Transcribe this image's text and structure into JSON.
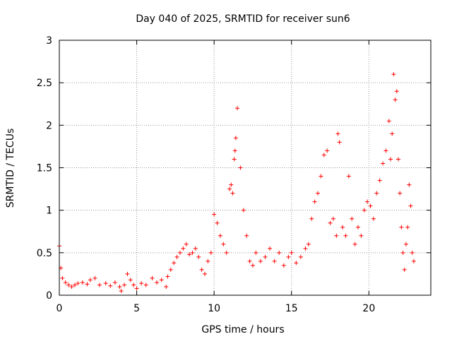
{
  "chart_data": {
    "type": "scatter",
    "title": "Day 040 of 2025, SRMTID for receiver sun6",
    "xlabel": "GPS time / hours",
    "ylabel": "SRMTID / TECUs",
    "xlim": [
      0,
      24
    ],
    "ylim": [
      0,
      3
    ],
    "xticks": [
      0,
      5,
      10,
      15,
      20
    ],
    "xtick_labels": [
      "0",
      "5",
      "10",
      "15",
      "20"
    ],
    "yticks": [
      0,
      0.5,
      1,
      1.5,
      2,
      2.5,
      3
    ],
    "ytick_labels": [
      "0",
      "0.5",
      "1",
      "1.5",
      "2",
      "2.5",
      "3"
    ],
    "grid": true,
    "marker": "plus",
    "marker_color": "#ff0000",
    "series": [
      {
        "name": "SRMTID",
        "x": [
          0.0,
          0.1,
          0.2,
          0.4,
          0.6,
          0.8,
          1.0,
          1.2,
          1.5,
          1.8,
          2.0,
          2.3,
          2.6,
          3.0,
          3.3,
          3.6,
          3.9,
          4.0,
          4.2,
          4.4,
          4.6,
          4.8,
          5.0,
          5.3,
          5.6,
          6.0,
          6.3,
          6.6,
          6.9,
          7.0,
          7.2,
          7.4,
          7.6,
          7.8,
          8.0,
          8.2,
          8.4,
          8.6,
          8.8,
          9.0,
          9.2,
          9.4,
          9.6,
          9.8,
          10.0,
          10.2,
          10.4,
          10.6,
          10.8,
          11.0,
          11.1,
          11.2,
          11.3,
          11.35,
          11.4,
          11.5,
          11.7,
          11.9,
          12.1,
          12.3,
          12.5,
          12.7,
          13.0,
          13.3,
          13.6,
          13.9,
          14.2,
          14.5,
          14.8,
          15.0,
          15.3,
          15.6,
          15.9,
          16.1,
          16.3,
          16.5,
          16.7,
          16.9,
          17.1,
          17.3,
          17.5,
          17.7,
          17.9,
          18.0,
          18.1,
          18.3,
          18.5,
          18.7,
          18.9,
          19.1,
          19.3,
          19.5,
          19.7,
          19.9,
          20.1,
          20.3,
          20.5,
          20.7,
          20.9,
          21.1,
          21.3,
          21.4,
          21.5,
          21.6,
          21.7,
          21.8,
          21.9,
          22.0,
          22.1,
          22.2,
          22.3,
          22.4,
          22.5,
          22.6,
          22.7,
          22.8,
          22.9
        ],
        "y": [
          0.58,
          0.32,
          0.2,
          0.15,
          0.12,
          0.1,
          0.12,
          0.14,
          0.15,
          0.13,
          0.18,
          0.2,
          0.12,
          0.14,
          0.11,
          0.15,
          0.1,
          0.05,
          0.12,
          0.25,
          0.18,
          0.12,
          0.08,
          0.14,
          0.12,
          0.2,
          0.15,
          0.18,
          0.1,
          0.22,
          0.3,
          0.38,
          0.45,
          0.5,
          0.55,
          0.6,
          0.48,
          0.5,
          0.55,
          0.45,
          0.3,
          0.25,
          0.4,
          0.5,
          0.95,
          0.85,
          0.7,
          0.6,
          0.5,
          1.25,
          1.3,
          1.2,
          1.6,
          1.7,
          1.85,
          2.2,
          1.5,
          1.0,
          0.7,
          0.4,
          0.35,
          0.5,
          0.4,
          0.45,
          0.55,
          0.4,
          0.5,
          0.35,
          0.45,
          0.5,
          0.38,
          0.45,
          0.55,
          0.6,
          0.9,
          1.1,
          1.2,
          1.4,
          1.65,
          1.7,
          0.85,
          0.9,
          0.7,
          1.9,
          1.8,
          0.8,
          0.7,
          1.4,
          0.9,
          0.6,
          0.8,
          0.7,
          1.0,
          1.1,
          1.05,
          0.9,
          1.2,
          1.35,
          1.55,
          1.7,
          2.05,
          1.6,
          1.9,
          2.6,
          2.3,
          2.4,
          1.6,
          1.2,
          0.8,
          0.5,
          0.3,
          0.6,
          0.8,
          1.3,
          1.05,
          0.5,
          0.4
        ]
      }
    ]
  }
}
